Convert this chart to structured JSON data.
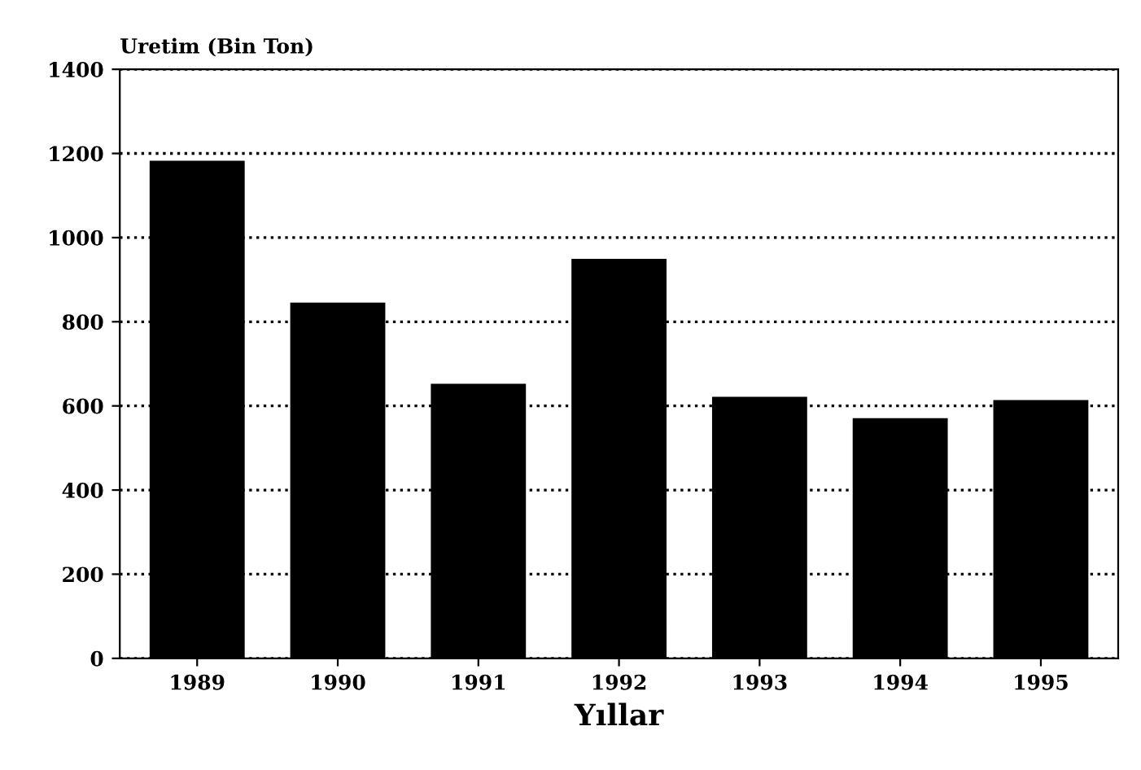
{
  "chart_data": {
    "type": "bar",
    "ylabel": "Uretim (Bin Ton)",
    "xlabel": "Yıllar",
    "categories": [
      "1989",
      "1990",
      "1991",
      "1992",
      "1993",
      "1994",
      "1995"
    ],
    "values": [
      1180,
      843,
      650,
      947,
      619,
      568,
      611
    ],
    "color": "#000000",
    "ylim": [
      0,
      1400
    ],
    "yticks": [
      0,
      200,
      400,
      600,
      800,
      1000,
      1200,
      1400
    ],
    "grid": "y"
  }
}
